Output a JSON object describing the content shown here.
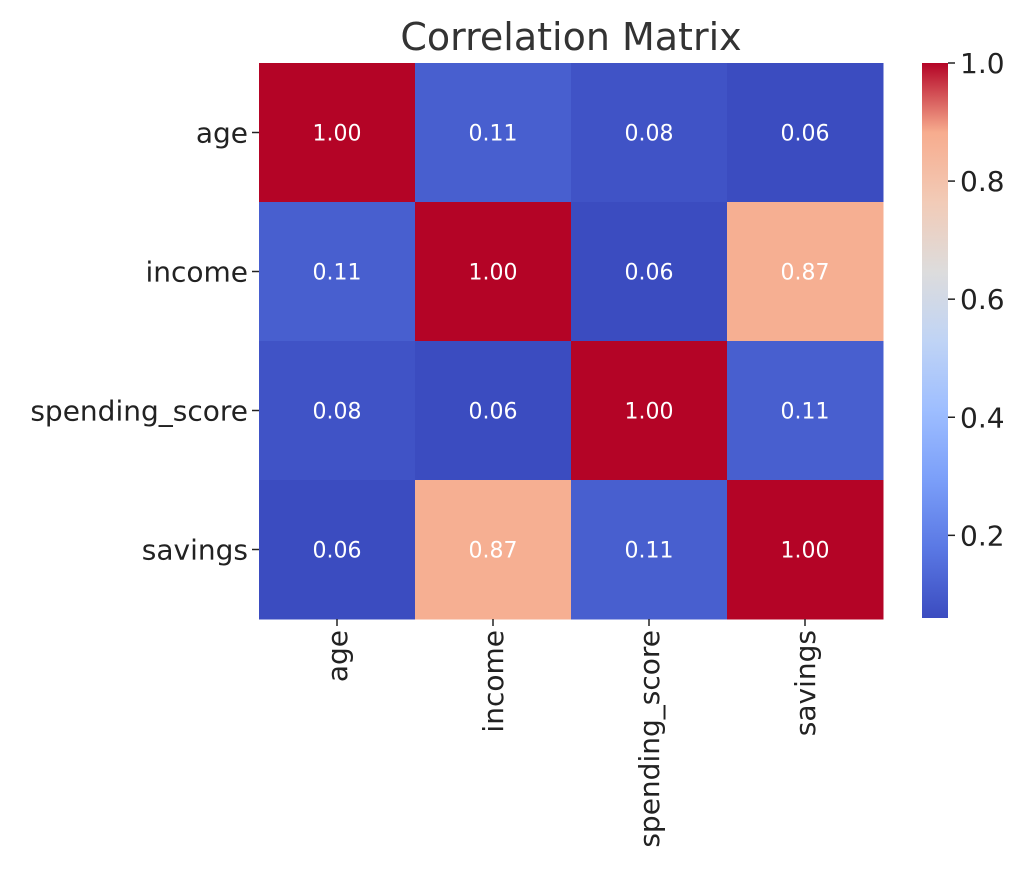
{
  "chart_data": {
    "type": "heatmap",
    "title": "Correlation Matrix",
    "xlabel": "",
    "ylabel": "",
    "rows": [
      "age",
      "income",
      "spending_score",
      "savings"
    ],
    "columns": [
      "age",
      "income",
      "spending_score",
      "savings"
    ],
    "values": [
      [
        1.0,
        0.11,
        0.08,
        0.06
      ],
      [
        0.11,
        1.0,
        0.06,
        0.87
      ],
      [
        0.08,
        0.06,
        1.0,
        0.11
      ],
      [
        0.06,
        0.87,
        0.11,
        1.0
      ]
    ],
    "value_labels": [
      [
        "1.00",
        "0.11",
        "0.08",
        "0.06"
      ],
      [
        "0.11",
        "1.00",
        "0.06",
        "0.87"
      ],
      [
        "0.08",
        "0.06",
        "1.00",
        "0.11"
      ],
      [
        "0.06",
        "0.87",
        "0.11",
        "1.00"
      ]
    ],
    "colormap": "coolwarm",
    "color_range": [
      0.06,
      1.0
    ],
    "colorbar": {
      "ticks": [
        0.2,
        0.4,
        0.6,
        0.8,
        1.0
      ],
      "tick_labels": [
        "0.2",
        "0.4",
        "0.6",
        "0.8",
        "1.0"
      ]
    }
  }
}
